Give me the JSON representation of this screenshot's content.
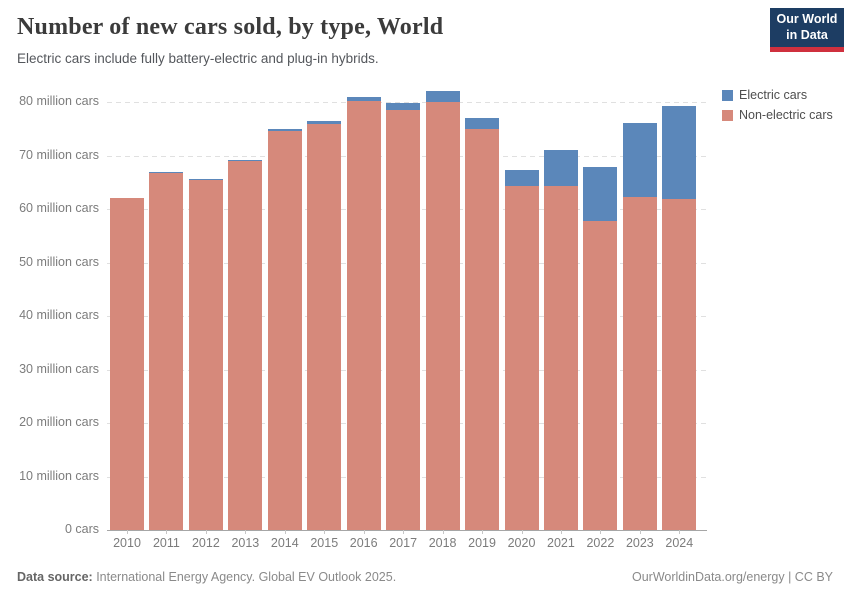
{
  "header": {
    "title": "Number of new cars sold, by type, World",
    "subtitle": "Electric cars include fully battery-electric and plug-in hybrids.",
    "logo": {
      "line1": "Our World",
      "line2": "in Data",
      "bg_color": "#1d3d63",
      "accent_color": "#cf303e"
    }
  },
  "legend": {
    "items": [
      {
        "label": "Electric cars",
        "color": "#5b87ba"
      },
      {
        "label": "Non-electric cars",
        "color": "#d6897b"
      }
    ]
  },
  "chart_data": {
    "type": "bar",
    "stacked": true,
    "title": "Number of new cars sold, by type, World",
    "subtitle": "Electric cars include fully battery-electric and plug-in hybrids.",
    "xlabel": "",
    "ylabel": "",
    "unit": "million cars",
    "categories": [
      "2010",
      "2011",
      "2012",
      "2013",
      "2014",
      "2015",
      "2016",
      "2017",
      "2018",
      "2019",
      "2020",
      "2021",
      "2022",
      "2023",
      "2024"
    ],
    "series": [
      {
        "name": "Electric cars",
        "color": "#5b87ba",
        "values": [
          0.0,
          0.1,
          0.1,
          0.2,
          0.3,
          0.5,
          0.8,
          1.2,
          2.1,
          2.2,
          3.0,
          6.6,
          10.2,
          13.9,
          17.4
        ]
      },
      {
        "name": "Non-electric cars",
        "color": "#d6897b",
        "values": [
          62.0,
          66.9,
          65.5,
          69.0,
          74.6,
          75.9,
          80.2,
          78.6,
          80.0,
          74.9,
          64.4,
          64.4,
          57.7,
          62.2,
          61.9
        ]
      }
    ],
    "totals": [
      62.0,
      67.0,
      65.6,
      69.2,
      74.9,
      76.4,
      81.0,
      79.8,
      82.1,
      77.1,
      67.4,
      71.0,
      67.9,
      76.1,
      79.3
    ],
    "ylim": [
      0,
      83.2
    ],
    "y_ticks": [
      {
        "value": 0,
        "label": "0 cars"
      },
      {
        "value": 10,
        "label": "10 million cars"
      },
      {
        "value": 20,
        "label": "20 million cars"
      },
      {
        "value": 30,
        "label": "30 million cars"
      },
      {
        "value": 40,
        "label": "40 million cars"
      },
      {
        "value": 50,
        "label": "50 million cars"
      },
      {
        "value": 60,
        "label": "60 million cars"
      },
      {
        "value": 70,
        "label": "70 million cars"
      },
      {
        "value": 80,
        "label": "80 million cars"
      }
    ],
    "grid": "horizontal-dashed",
    "legend_position": "top-right"
  },
  "footer": {
    "source_label": "Data source:",
    "source_text": " International Energy Agency. Global EV Outlook 2025.",
    "credit": "OurWorldinData.org/energy | CC BY"
  }
}
